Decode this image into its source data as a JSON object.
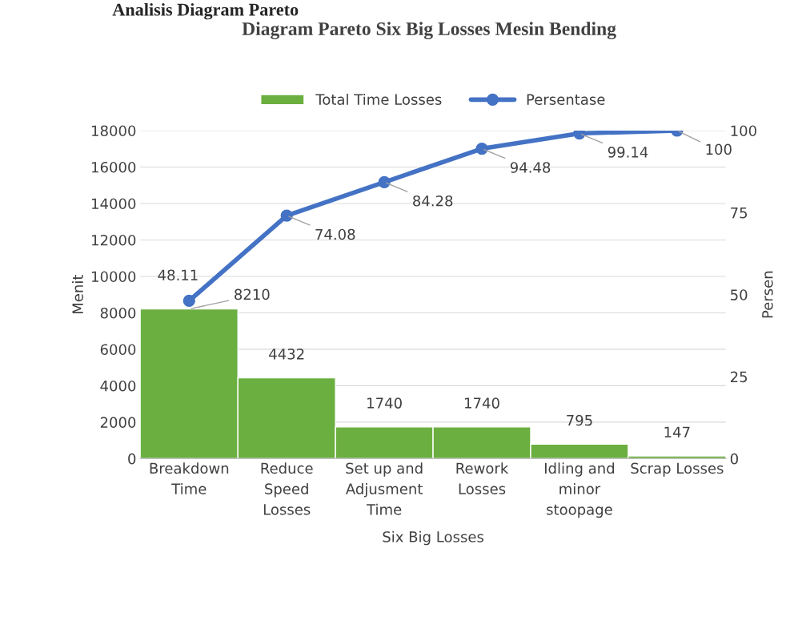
{
  "chart_data": {
    "type": "bar",
    "title": "Diagram Pareto Six Big Losses Mesin Bending",
    "annotations": [
      "Analisis Diagram Pareto"
    ],
    "categories": [
      "Breakdown\nTime",
      "Reduce\nSpeed\nLosses",
      "Set up and\nAdjusment\nTime",
      "Rework\nLosses",
      "Idling and\nminor\nstoopage",
      "Scrap Losses"
    ],
    "xlabel": "Six Big Losses",
    "ylabel": "Menit",
    "y2label": "Persen",
    "series": [
      {
        "name": "Total Time Losses",
        "color": "#6aaf3f",
        "values": [
          8210,
          4432,
          1740,
          1740,
          795,
          147
        ]
      },
      {
        "name": "Persentase",
        "type": "line",
        "axis": "y2",
        "color": "#4472c4",
        "marker": "circle",
        "values": [
          48.11,
          74.08,
          84.28,
          94.48,
          99.14,
          100
        ]
      }
    ],
    "ylim": [
      0,
      18000
    ],
    "yticks": [
      0,
      2000,
      4000,
      6000,
      8000,
      10000,
      12000,
      14000,
      16000,
      18000
    ],
    "y2lim": [
      0,
      100
    ],
    "y2ticks": [
      0,
      25,
      50,
      75,
      100
    ],
    "grid": "y",
    "legend": "top",
    "data_labels": true
  }
}
